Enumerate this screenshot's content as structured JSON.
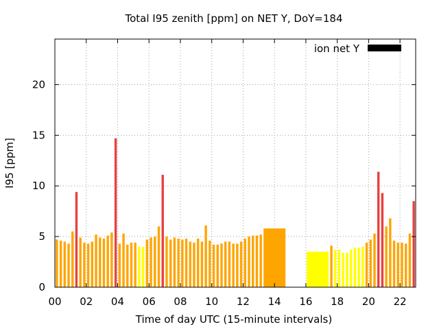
{
  "chart_data": {
    "type": "bar",
    "title": "Total I95 zenith [ppm] on NET Y, DoY=184",
    "xlabel": "Time of day UTC (15-minute intervals)",
    "ylabel": "I95 [ppm]",
    "xlim": [
      0,
      23
    ],
    "ylim": [
      0,
      24.5
    ],
    "xticks": [
      {
        "v": 0,
        "label": "00"
      },
      {
        "v": 2,
        "label": "02"
      },
      {
        "v": 4,
        "label": "04"
      },
      {
        "v": 6,
        "label": "06"
      },
      {
        "v": 8,
        "label": "08"
      },
      {
        "v": 10,
        "label": "10"
      },
      {
        "v": 12,
        "label": "12"
      },
      {
        "v": 14,
        "label": "14"
      },
      {
        "v": 16,
        "label": "16"
      },
      {
        "v": 18,
        "label": "18"
      },
      {
        "v": 20,
        "label": "20"
      },
      {
        "v": 22,
        "label": "22"
      }
    ],
    "yticks": [
      {
        "v": 0,
        "label": "0"
      },
      {
        "v": 5,
        "label": "5"
      },
      {
        "v": 10,
        "label": "10"
      },
      {
        "v": 15,
        "label": "15"
      },
      {
        "v": 20,
        "label": "20"
      }
    ],
    "grid": true,
    "legend": {
      "label": "ion net Y",
      "color": "#000000",
      "position": "top-right"
    },
    "colors": {
      "orange": "#FFA500",
      "yellow": "#FFFF00",
      "red": "#E8413F",
      "legend": "#000000"
    },
    "bars": [
      {
        "x0": 0.05,
        "x1": 0.2,
        "y": 4.7,
        "c": "orange"
      },
      {
        "x0": 0.3,
        "x1": 0.45,
        "y": 4.6,
        "c": "orange"
      },
      {
        "x0": 0.55,
        "x1": 0.7,
        "y": 4.5,
        "c": "orange"
      },
      {
        "x0": 0.8,
        "x1": 0.95,
        "y": 4.3,
        "c": "orange"
      },
      {
        "x0": 1.05,
        "x1": 1.2,
        "y": 5.5,
        "c": "orange"
      },
      {
        "x0": 1.3,
        "x1": 1.45,
        "y": 9.4,
        "c": "red"
      },
      {
        "x0": 1.55,
        "x1": 1.7,
        "y": 4.9,
        "c": "orange"
      },
      {
        "x0": 1.8,
        "x1": 1.95,
        "y": 4.4,
        "c": "orange"
      },
      {
        "x0": 2.05,
        "x1": 2.2,
        "y": 4.3,
        "c": "orange"
      },
      {
        "x0": 2.3,
        "x1": 2.45,
        "y": 4.5,
        "c": "orange"
      },
      {
        "x0": 2.55,
        "x1": 2.7,
        "y": 5.2,
        "c": "orange"
      },
      {
        "x0": 2.8,
        "x1": 2.95,
        "y": 4.9,
        "c": "orange"
      },
      {
        "x0": 3.05,
        "x1": 3.2,
        "y": 4.8,
        "c": "orange"
      },
      {
        "x0": 3.3,
        "x1": 3.45,
        "y": 5.1,
        "c": "orange"
      },
      {
        "x0": 3.55,
        "x1": 3.7,
        "y": 5.4,
        "c": "orange"
      },
      {
        "x0": 3.8,
        "x1": 3.95,
        "y": 14.7,
        "c": "red"
      },
      {
        "x0": 4.05,
        "x1": 4.2,
        "y": 4.3,
        "c": "orange"
      },
      {
        "x0": 4.3,
        "x1": 4.45,
        "y": 5.3,
        "c": "orange"
      },
      {
        "x0": 4.55,
        "x1": 4.7,
        "y": 4.2,
        "c": "orange"
      },
      {
        "x0": 4.8,
        "x1": 4.95,
        "y": 4.4,
        "c": "orange"
      },
      {
        "x0": 5.05,
        "x1": 5.2,
        "y": 4.4,
        "c": "orange"
      },
      {
        "x0": 5.3,
        "x1": 5.45,
        "y": 4.0,
        "c": "yellow"
      },
      {
        "x0": 5.55,
        "x1": 5.7,
        "y": 4.0,
        "c": "yellow"
      },
      {
        "x0": 5.8,
        "x1": 5.95,
        "y": 4.7,
        "c": "orange"
      },
      {
        "x0": 6.05,
        "x1": 6.2,
        "y": 4.9,
        "c": "orange"
      },
      {
        "x0": 6.3,
        "x1": 6.45,
        "y": 5.0,
        "c": "orange"
      },
      {
        "x0": 6.55,
        "x1": 6.7,
        "y": 6.0,
        "c": "orange"
      },
      {
        "x0": 6.8,
        "x1": 6.95,
        "y": 11.1,
        "c": "red"
      },
      {
        "x0": 7.05,
        "x1": 7.2,
        "y": 5.0,
        "c": "orange"
      },
      {
        "x0": 7.3,
        "x1": 7.45,
        "y": 4.7,
        "c": "orange"
      },
      {
        "x0": 7.55,
        "x1": 7.7,
        "y": 4.9,
        "c": "orange"
      },
      {
        "x0": 7.8,
        "x1": 7.95,
        "y": 4.8,
        "c": "orange"
      },
      {
        "x0": 8.05,
        "x1": 8.2,
        "y": 4.7,
        "c": "orange"
      },
      {
        "x0": 8.3,
        "x1": 8.45,
        "y": 4.8,
        "c": "orange"
      },
      {
        "x0": 8.55,
        "x1": 8.7,
        "y": 4.5,
        "c": "orange"
      },
      {
        "x0": 8.8,
        "x1": 8.95,
        "y": 4.4,
        "c": "orange"
      },
      {
        "x0": 9.05,
        "x1": 9.2,
        "y": 4.8,
        "c": "orange"
      },
      {
        "x0": 9.3,
        "x1": 9.45,
        "y": 4.5,
        "c": "orange"
      },
      {
        "x0": 9.55,
        "x1": 9.7,
        "y": 6.1,
        "c": "orange"
      },
      {
        "x0": 9.8,
        "x1": 9.95,
        "y": 4.6,
        "c": "orange"
      },
      {
        "x0": 10.05,
        "x1": 10.2,
        "y": 4.2,
        "c": "orange"
      },
      {
        "x0": 10.3,
        "x1": 10.45,
        "y": 4.2,
        "c": "orange"
      },
      {
        "x0": 10.55,
        "x1": 10.7,
        "y": 4.3,
        "c": "orange"
      },
      {
        "x0": 10.8,
        "x1": 10.95,
        "y": 4.5,
        "c": "orange"
      },
      {
        "x0": 11.05,
        "x1": 11.2,
        "y": 4.5,
        "c": "orange"
      },
      {
        "x0": 11.3,
        "x1": 11.45,
        "y": 4.3,
        "c": "orange"
      },
      {
        "x0": 11.55,
        "x1": 11.7,
        "y": 4.3,
        "c": "orange"
      },
      {
        "x0": 11.8,
        "x1": 11.95,
        "y": 4.5,
        "c": "orange"
      },
      {
        "x0": 12.05,
        "x1": 12.2,
        "y": 4.8,
        "c": "orange"
      },
      {
        "x0": 12.3,
        "x1": 12.45,
        "y": 5.0,
        "c": "orange"
      },
      {
        "x0": 12.55,
        "x1": 12.7,
        "y": 5.1,
        "c": "orange"
      },
      {
        "x0": 12.8,
        "x1": 12.95,
        "y": 5.1,
        "c": "orange"
      },
      {
        "x0": 13.05,
        "x1": 13.2,
        "y": 5.2,
        "c": "orange"
      },
      {
        "x0": 13.3,
        "x1": 14.7,
        "y": 5.8,
        "c": "orange"
      },
      {
        "x0": 16.05,
        "x1": 17.45,
        "y": 3.5,
        "c": "yellow"
      },
      {
        "x0": 17.55,
        "x1": 17.7,
        "y": 4.1,
        "c": "orange"
      },
      {
        "x0": 17.8,
        "x1": 17.95,
        "y": 3.7,
        "c": "yellow"
      },
      {
        "x0": 18.05,
        "x1": 18.2,
        "y": 3.7,
        "c": "yellow"
      },
      {
        "x0": 18.3,
        "x1": 18.45,
        "y": 3.4,
        "c": "yellow"
      },
      {
        "x0": 18.55,
        "x1": 18.7,
        "y": 3.4,
        "c": "yellow"
      },
      {
        "x0": 18.8,
        "x1": 18.95,
        "y": 3.7,
        "c": "yellow"
      },
      {
        "x0": 19.05,
        "x1": 19.2,
        "y": 3.9,
        "c": "yellow"
      },
      {
        "x0": 19.3,
        "x1": 19.45,
        "y": 3.9,
        "c": "yellow"
      },
      {
        "x0": 19.55,
        "x1": 19.7,
        "y": 4.0,
        "c": "yellow"
      },
      {
        "x0": 19.8,
        "x1": 19.95,
        "y": 4.4,
        "c": "orange"
      },
      {
        "x0": 20.05,
        "x1": 20.2,
        "y": 4.7,
        "c": "orange"
      },
      {
        "x0": 20.3,
        "x1": 20.45,
        "y": 5.3,
        "c": "orange"
      },
      {
        "x0": 20.55,
        "x1": 20.7,
        "y": 11.4,
        "c": "red"
      },
      {
        "x0": 20.8,
        "x1": 20.95,
        "y": 9.3,
        "c": "red"
      },
      {
        "x0": 21.05,
        "x1": 21.2,
        "y": 6.0,
        "c": "orange"
      },
      {
        "x0": 21.3,
        "x1": 21.45,
        "y": 6.8,
        "c": "orange"
      },
      {
        "x0": 21.55,
        "x1": 21.7,
        "y": 4.6,
        "c": "orange"
      },
      {
        "x0": 21.8,
        "x1": 21.95,
        "y": 4.4,
        "c": "orange"
      },
      {
        "x0": 22.05,
        "x1": 22.2,
        "y": 4.4,
        "c": "orange"
      },
      {
        "x0": 22.3,
        "x1": 22.45,
        "y": 4.3,
        "c": "orange"
      },
      {
        "x0": 22.55,
        "x1": 22.7,
        "y": 5.3,
        "c": "orange"
      },
      {
        "x0": 22.8,
        "x1": 22.95,
        "y": 8.5,
        "c": "red"
      }
    ]
  }
}
